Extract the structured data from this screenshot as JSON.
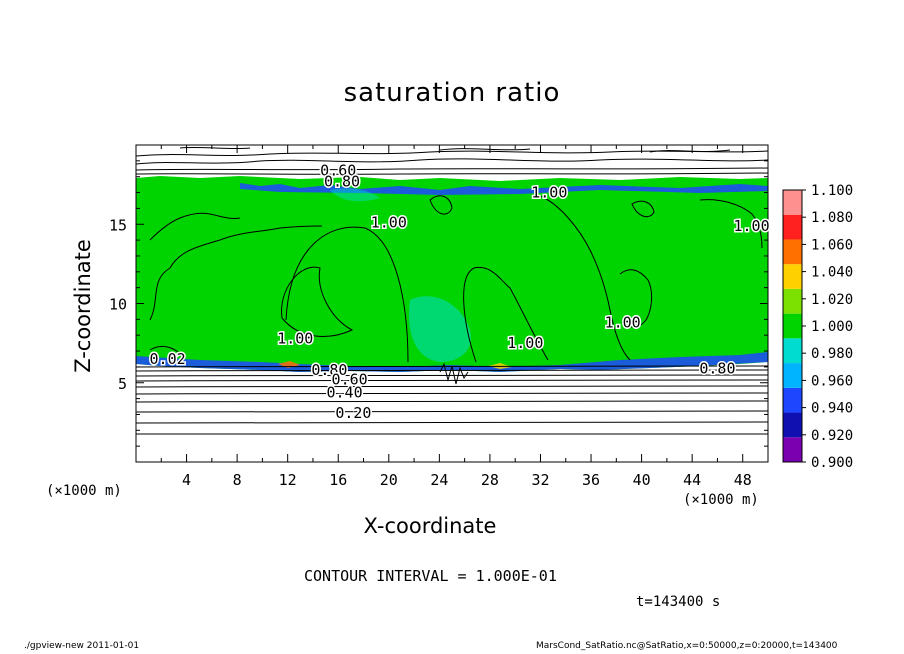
{
  "chart_data": {
    "type": "heatmap",
    "title": "saturation ratio",
    "xlabel": "X-coordinate",
    "ylabel": "Z-coordinate",
    "x_unit": "(×1000 m)",
    "xlim": [
      0,
      50
    ],
    "ylim": [
      0,
      20
    ],
    "x_ticks": [
      4,
      8,
      12,
      16,
      20,
      24,
      28,
      32,
      36,
      40,
      44,
      48
    ],
    "y_ticks": [
      5,
      10,
      15
    ],
    "colorbar": {
      "levels": [
        "0.900",
        "0.920",
        "0.940",
        "0.960",
        "0.980",
        "1.000",
        "1.020",
        "1.040",
        "1.060",
        "1.080",
        "1.100"
      ],
      "colors": [
        "#7a00b0",
        "#1010b0",
        "#1e46ff",
        "#00b4ff",
        "#00ddd0",
        "#00d400",
        "#7ce000",
        "#ffd000",
        "#ff7000",
        "#ff2020",
        "#ff9090"
      ]
    },
    "contour_labels": [
      {
        "text": "0.60",
        "x": 16.0,
        "z": 18.4
      },
      {
        "text": "0.80",
        "x": 16.3,
        "z": 17.7
      },
      {
        "text": "1.00",
        "x": 32.7,
        "z": 17.0
      },
      {
        "text": "1.00",
        "x": 20.0,
        "z": 15.1
      },
      {
        "text": "1.00",
        "x": 48.7,
        "z": 14.9
      },
      {
        "text": "1.00",
        "x": 12.6,
        "z": 7.8
      },
      {
        "text": "1.00",
        "x": 30.8,
        "z": 7.5
      },
      {
        "text": "1.00",
        "x": 38.5,
        "z": 8.8
      },
      {
        "text": "0.02",
        "x": 2.5,
        "z": 6.5
      },
      {
        "text": "0.80",
        "x": 15.3,
        "z": 5.8
      },
      {
        "text": "0.60",
        "x": 16.9,
        "z": 5.2
      },
      {
        "text": "0.40",
        "x": 16.5,
        "z": 4.4
      },
      {
        "text": "0.20",
        "x": 17.2,
        "z": 3.1
      },
      {
        "text": "0.80",
        "x": 46.0,
        "z": 5.9
      }
    ]
  },
  "contour_interval": "CONTOUR INTERVAL = 1.000E-01",
  "time_label": "t=143400 s",
  "footer_left": "./gpview-new   2011-01-01",
  "footer_right": "MarsCond_SatRatio.nc@SatRatio,x=0:50000,z=0:20000,t=143400"
}
